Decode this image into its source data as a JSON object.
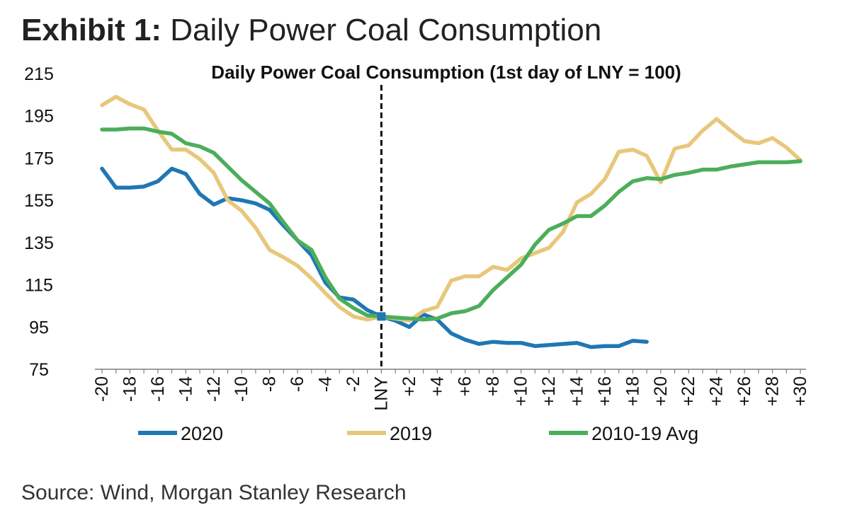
{
  "header": {
    "exhibit_label": "Exhibit 1:",
    "exhibit_title": "Daily Power Coal Consumption"
  },
  "source": "Source: Wind, Morgan Stanley Research",
  "chart_data": {
    "type": "line",
    "title": "Daily Power Coal Consumption (1st day of LNY = 100)",
    "xlabel": "",
    "ylabel": "",
    "xlim": [
      -20,
      30
    ],
    "ylim": [
      75,
      215
    ],
    "yticks": [
      75,
      95,
      115,
      135,
      155,
      175,
      195,
      215
    ],
    "xticks": [
      {
        "x": -20,
        "label": "-20"
      },
      {
        "x": -18,
        "label": "-18"
      },
      {
        "x": -16,
        "label": "-16"
      },
      {
        "x": -14,
        "label": "-14"
      },
      {
        "x": -12,
        "label": "-12"
      },
      {
        "x": -10,
        "label": "-10"
      },
      {
        "x": -8,
        "label": "-8"
      },
      {
        "x": -6,
        "label": "-6"
      },
      {
        "x": -4,
        "label": "-4"
      },
      {
        "x": -2,
        "label": "-2"
      },
      {
        "x": 0,
        "label": "LNY"
      },
      {
        "x": 2,
        "label": "+2"
      },
      {
        "x": 4,
        "label": "+4"
      },
      {
        "x": 6,
        "label": "+6"
      },
      {
        "x": 8,
        "label": "+8"
      },
      {
        "x": 10,
        "label": "+10"
      },
      {
        "x": 12,
        "label": "+12"
      },
      {
        "x": 14,
        "label": "+14"
      },
      {
        "x": 16,
        "label": "+16"
      },
      {
        "x": 18,
        "label": "+18"
      },
      {
        "x": 20,
        "label": "+20"
      },
      {
        "x": 22,
        "label": "+22"
      },
      {
        "x": 24,
        "label": "+24"
      },
      {
        "x": 26,
        "label": "+26"
      },
      {
        "x": 28,
        "label": "+28"
      },
      {
        "x": 30,
        "label": "+30"
      }
    ],
    "vline_x": 0,
    "grid": false,
    "legend_position": "bottom",
    "series": [
      {
        "name": "2020",
        "color": "#1f77b4",
        "x": [
          -20,
          -19,
          -18,
          -17,
          -16,
          -15,
          -14,
          -13,
          -12,
          -11,
          -10,
          -9,
          -8,
          -7,
          -6,
          -5,
          -4,
          -3,
          -2,
          -1,
          0,
          1,
          2,
          3,
          4,
          5,
          6,
          7,
          8,
          9,
          10,
          11,
          12,
          13,
          14,
          15,
          16,
          17,
          18,
          19
        ],
        "y": [
          170,
          161,
          161,
          161.5,
          164,
          170,
          167.5,
          158,
          153,
          156,
          155,
          153.5,
          150.5,
          143,
          136,
          129,
          116,
          109,
          108,
          103,
          100,
          98,
          95,
          101,
          98.5,
          92,
          89,
          87,
          88,
          87.5,
          87.5,
          86,
          86.5,
          87,
          87.5,
          85.5,
          86,
          86,
          88.5,
          88
        ]
      },
      {
        "name": "2019",
        "color": "#e8c77b",
        "x": [
          -20,
          -19,
          -18,
          -17,
          -16,
          -15,
          -14,
          -13,
          -12,
          -11,
          -10,
          -9,
          -8,
          -7,
          -6,
          -5,
          -4,
          -3,
          -2,
          -1,
          0,
          1,
          2,
          3,
          4,
          5,
          6,
          7,
          8,
          9,
          10,
          11,
          12,
          13,
          14,
          15,
          16,
          17,
          18,
          19,
          20,
          21,
          22,
          23,
          24,
          25,
          26,
          27,
          28,
          29,
          30
        ],
        "y": [
          200,
          204,
          200.5,
          198,
          188,
          179,
          179,
          174.5,
          168,
          155,
          150,
          142,
          131.5,
          128,
          124,
          118,
          111,
          104.5,
          100,
          98.5,
          100,
          99,
          98,
          102.5,
          104.5,
          117,
          119,
          119,
          123.5,
          122,
          127.5,
          130,
          132.5,
          140,
          154,
          158,
          165,
          178,
          179,
          176,
          163.5,
          179.5,
          181,
          188,
          193.5,
          188,
          183,
          182,
          184.5,
          180,
          174
        ]
      },
      {
        "name": "2010-19 Avg",
        "color": "#4cae5b",
        "x": [
          -20,
          -19,
          -18,
          -17,
          -16,
          -15,
          -14,
          -13,
          -12,
          -11,
          -10,
          -9,
          -8,
          -7,
          -6,
          -5,
          -4,
          -3,
          -2,
          -1,
          0,
          1,
          2,
          3,
          4,
          5,
          6,
          7,
          8,
          9,
          10,
          11,
          12,
          13,
          14,
          15,
          16,
          17,
          18,
          19,
          20,
          21,
          22,
          23,
          24,
          25,
          26,
          27,
          28,
          29,
          30
        ],
        "y": [
          188.5,
          188.5,
          189,
          189,
          187.5,
          186.5,
          182,
          180.5,
          177.5,
          171,
          164.5,
          159,
          153.5,
          144.5,
          136,
          131.5,
          118.5,
          108.5,
          104,
          100.5,
          100,
          99.5,
          99,
          98.5,
          99,
          101.5,
          102.5,
          105,
          112.5,
          118.5,
          124.5,
          134,
          141,
          144,
          147.5,
          147.5,
          152.5,
          159,
          164,
          165.5,
          165,
          167,
          168,
          169.5,
          169.5,
          171,
          172,
          173,
          173,
          173,
          173.5
        ]
      }
    ]
  }
}
